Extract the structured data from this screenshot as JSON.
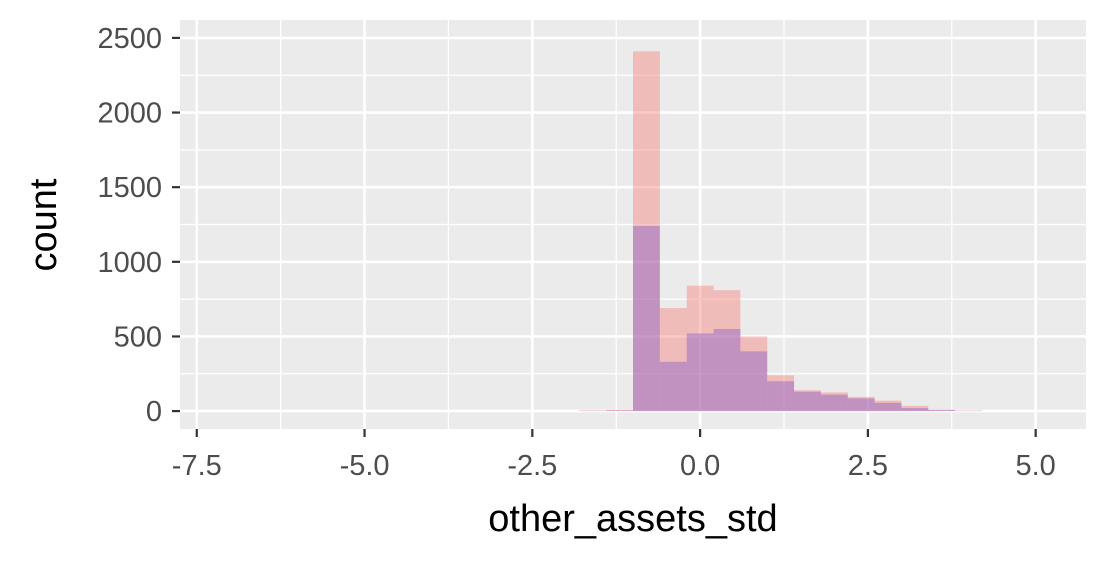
{
  "chart_data": {
    "type": "histogram",
    "xlabel": "other_assets_std",
    "ylabel": "count",
    "xlim": [
      -7.75,
      5.75
    ],
    "ylim": [
      -120,
      2620
    ],
    "x_ticks": [
      -7.5,
      -5.0,
      -2.5,
      0.0,
      2.5,
      5.0
    ],
    "x_tick_labels": [
      "-7.5",
      "-5.0",
      "-2.5",
      "0.0",
      "2.5",
      "5.0"
    ],
    "y_ticks": [
      0,
      500,
      1000,
      1500,
      2000,
      2500
    ],
    "y_tick_labels": [
      "0",
      "500",
      "1000",
      "1500",
      "2000",
      "2500"
    ],
    "grid": true,
    "legend": "none",
    "bin_width": 0.4,
    "series": [
      {
        "color": "#F8766D",
        "opacity": 0.4,
        "bins": [
          {
            "x0": -1.8,
            "x1": -1.4,
            "count": 4
          },
          {
            "x0": -1.4,
            "x1": -1.0,
            "count": 8
          },
          {
            "x0": -1.0,
            "x1": -0.6,
            "count": 2410
          },
          {
            "x0": -0.6,
            "x1": -0.2,
            "count": 690
          },
          {
            "x0": -0.2,
            "x1": 0.2,
            "count": 840
          },
          {
            "x0": 0.2,
            "x1": 0.6,
            "count": 810
          },
          {
            "x0": 0.6,
            "x1": 1.0,
            "count": 500
          },
          {
            "x0": 1.0,
            "x1": 1.4,
            "count": 240
          },
          {
            "x0": 1.4,
            "x1": 1.8,
            "count": 140
          },
          {
            "x0": 1.8,
            "x1": 2.2,
            "count": 125
          },
          {
            "x0": 2.2,
            "x1": 2.6,
            "count": 95
          },
          {
            "x0": 2.6,
            "x1": 3.0,
            "count": 70
          },
          {
            "x0": 3.0,
            "x1": 3.4,
            "count": 35
          },
          {
            "x0": 3.4,
            "x1": 3.8,
            "count": 10
          },
          {
            "x0": 3.8,
            "x1": 4.2,
            "count": 3
          }
        ]
      },
      {
        "color": "#7B4FC9",
        "opacity": 0.4,
        "bins": [
          {
            "x0": -1.8,
            "x1": -1.4,
            "count": 2
          },
          {
            "x0": -1.4,
            "x1": -1.0,
            "count": 4
          },
          {
            "x0": -1.0,
            "x1": -0.6,
            "count": 1240
          },
          {
            "x0": -0.6,
            "x1": -0.2,
            "count": 330
          },
          {
            "x0": -0.2,
            "x1": 0.2,
            "count": 520
          },
          {
            "x0": 0.2,
            "x1": 0.6,
            "count": 550
          },
          {
            "x0": 0.6,
            "x1": 1.0,
            "count": 400
          },
          {
            "x0": 1.0,
            "x1": 1.4,
            "count": 200
          },
          {
            "x0": 1.4,
            "x1": 1.8,
            "count": 130
          },
          {
            "x0": 1.8,
            "x1": 2.2,
            "count": 110
          },
          {
            "x0": 2.2,
            "x1": 2.6,
            "count": 85
          },
          {
            "x0": 2.6,
            "x1": 3.0,
            "count": 55
          },
          {
            "x0": 3.0,
            "x1": 3.4,
            "count": 20
          },
          {
            "x0": 3.4,
            "x1": 3.8,
            "count": 6
          },
          {
            "x0": 3.8,
            "x1": 4.2,
            "count": 2
          }
        ]
      }
    ]
  }
}
